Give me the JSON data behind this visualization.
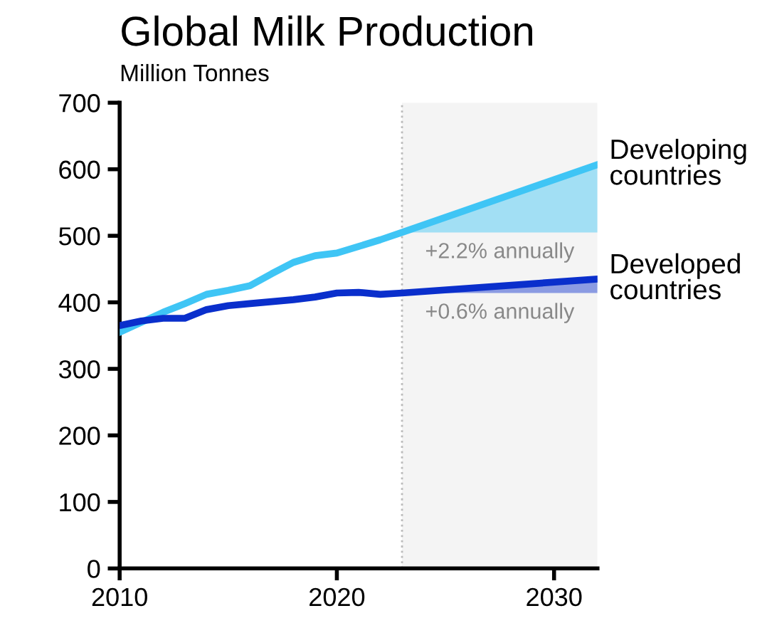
{
  "chart_data": {
    "type": "line",
    "title": "Global Milk Production",
    "subtitle": "Million Tonnes",
    "xlim": [
      2010,
      2032
    ],
    "xticks": [
      2010,
      2020,
      2030
    ],
    "ylim": [
      0,
      700
    ],
    "yticks": [
      0,
      100,
      200,
      300,
      400,
      500,
      600,
      700
    ],
    "grid": false,
    "marker": "none",
    "line_style": "solid",
    "series": [
      {
        "name": "Developing countries",
        "color": "#3fc5f5",
        "x": [
          2010,
          2011,
          2012,
          2013,
          2014,
          2015,
          2016,
          2017,
          2018,
          2019,
          2020,
          2021,
          2022,
          2023,
          2032
        ],
        "values": [
          355,
          370,
          385,
          398,
          412,
          418,
          425,
          443,
          460,
          470,
          474,
          484,
          494,
          505,
          607
        ],
        "lower": [
          null,
          null,
          null,
          null,
          null,
          null,
          null,
          null,
          null,
          null,
          null,
          null,
          null,
          505,
          505
        ],
        "upper": [
          null,
          null,
          null,
          null,
          null,
          null,
          null,
          null,
          null,
          null,
          null,
          null,
          null,
          505,
          607
        ]
      },
      {
        "name": "Developed countries",
        "color": "#0a2fcc",
        "x": [
          2010,
          2011,
          2012,
          2013,
          2014,
          2015,
          2016,
          2017,
          2018,
          2019,
          2020,
          2021,
          2022,
          2023,
          2032
        ],
        "values": [
          365,
          372,
          376,
          376,
          389,
          395,
          398,
          401,
          404,
          408,
          414,
          415,
          412,
          414,
          435
        ],
        "lower": [
          null,
          null,
          null,
          null,
          null,
          null,
          null,
          null,
          null,
          null,
          null,
          null,
          null,
          414,
          414
        ],
        "upper": [
          null,
          null,
          null,
          null,
          null,
          null,
          null,
          null,
          null,
          null,
          null,
          null,
          null,
          414,
          435
        ]
      }
    ],
    "bands": [
      {
        "axis": "x",
        "from": 2023,
        "to": 2032,
        "color": "#f4f4f4"
      }
    ],
    "ref_lines": [
      {
        "axis": "x",
        "value": 2023,
        "color": "#bbbbbb",
        "line_style": "dotted"
      }
    ],
    "annotations": [
      "+2.2% annually",
      "+0.6% annually"
    ]
  }
}
